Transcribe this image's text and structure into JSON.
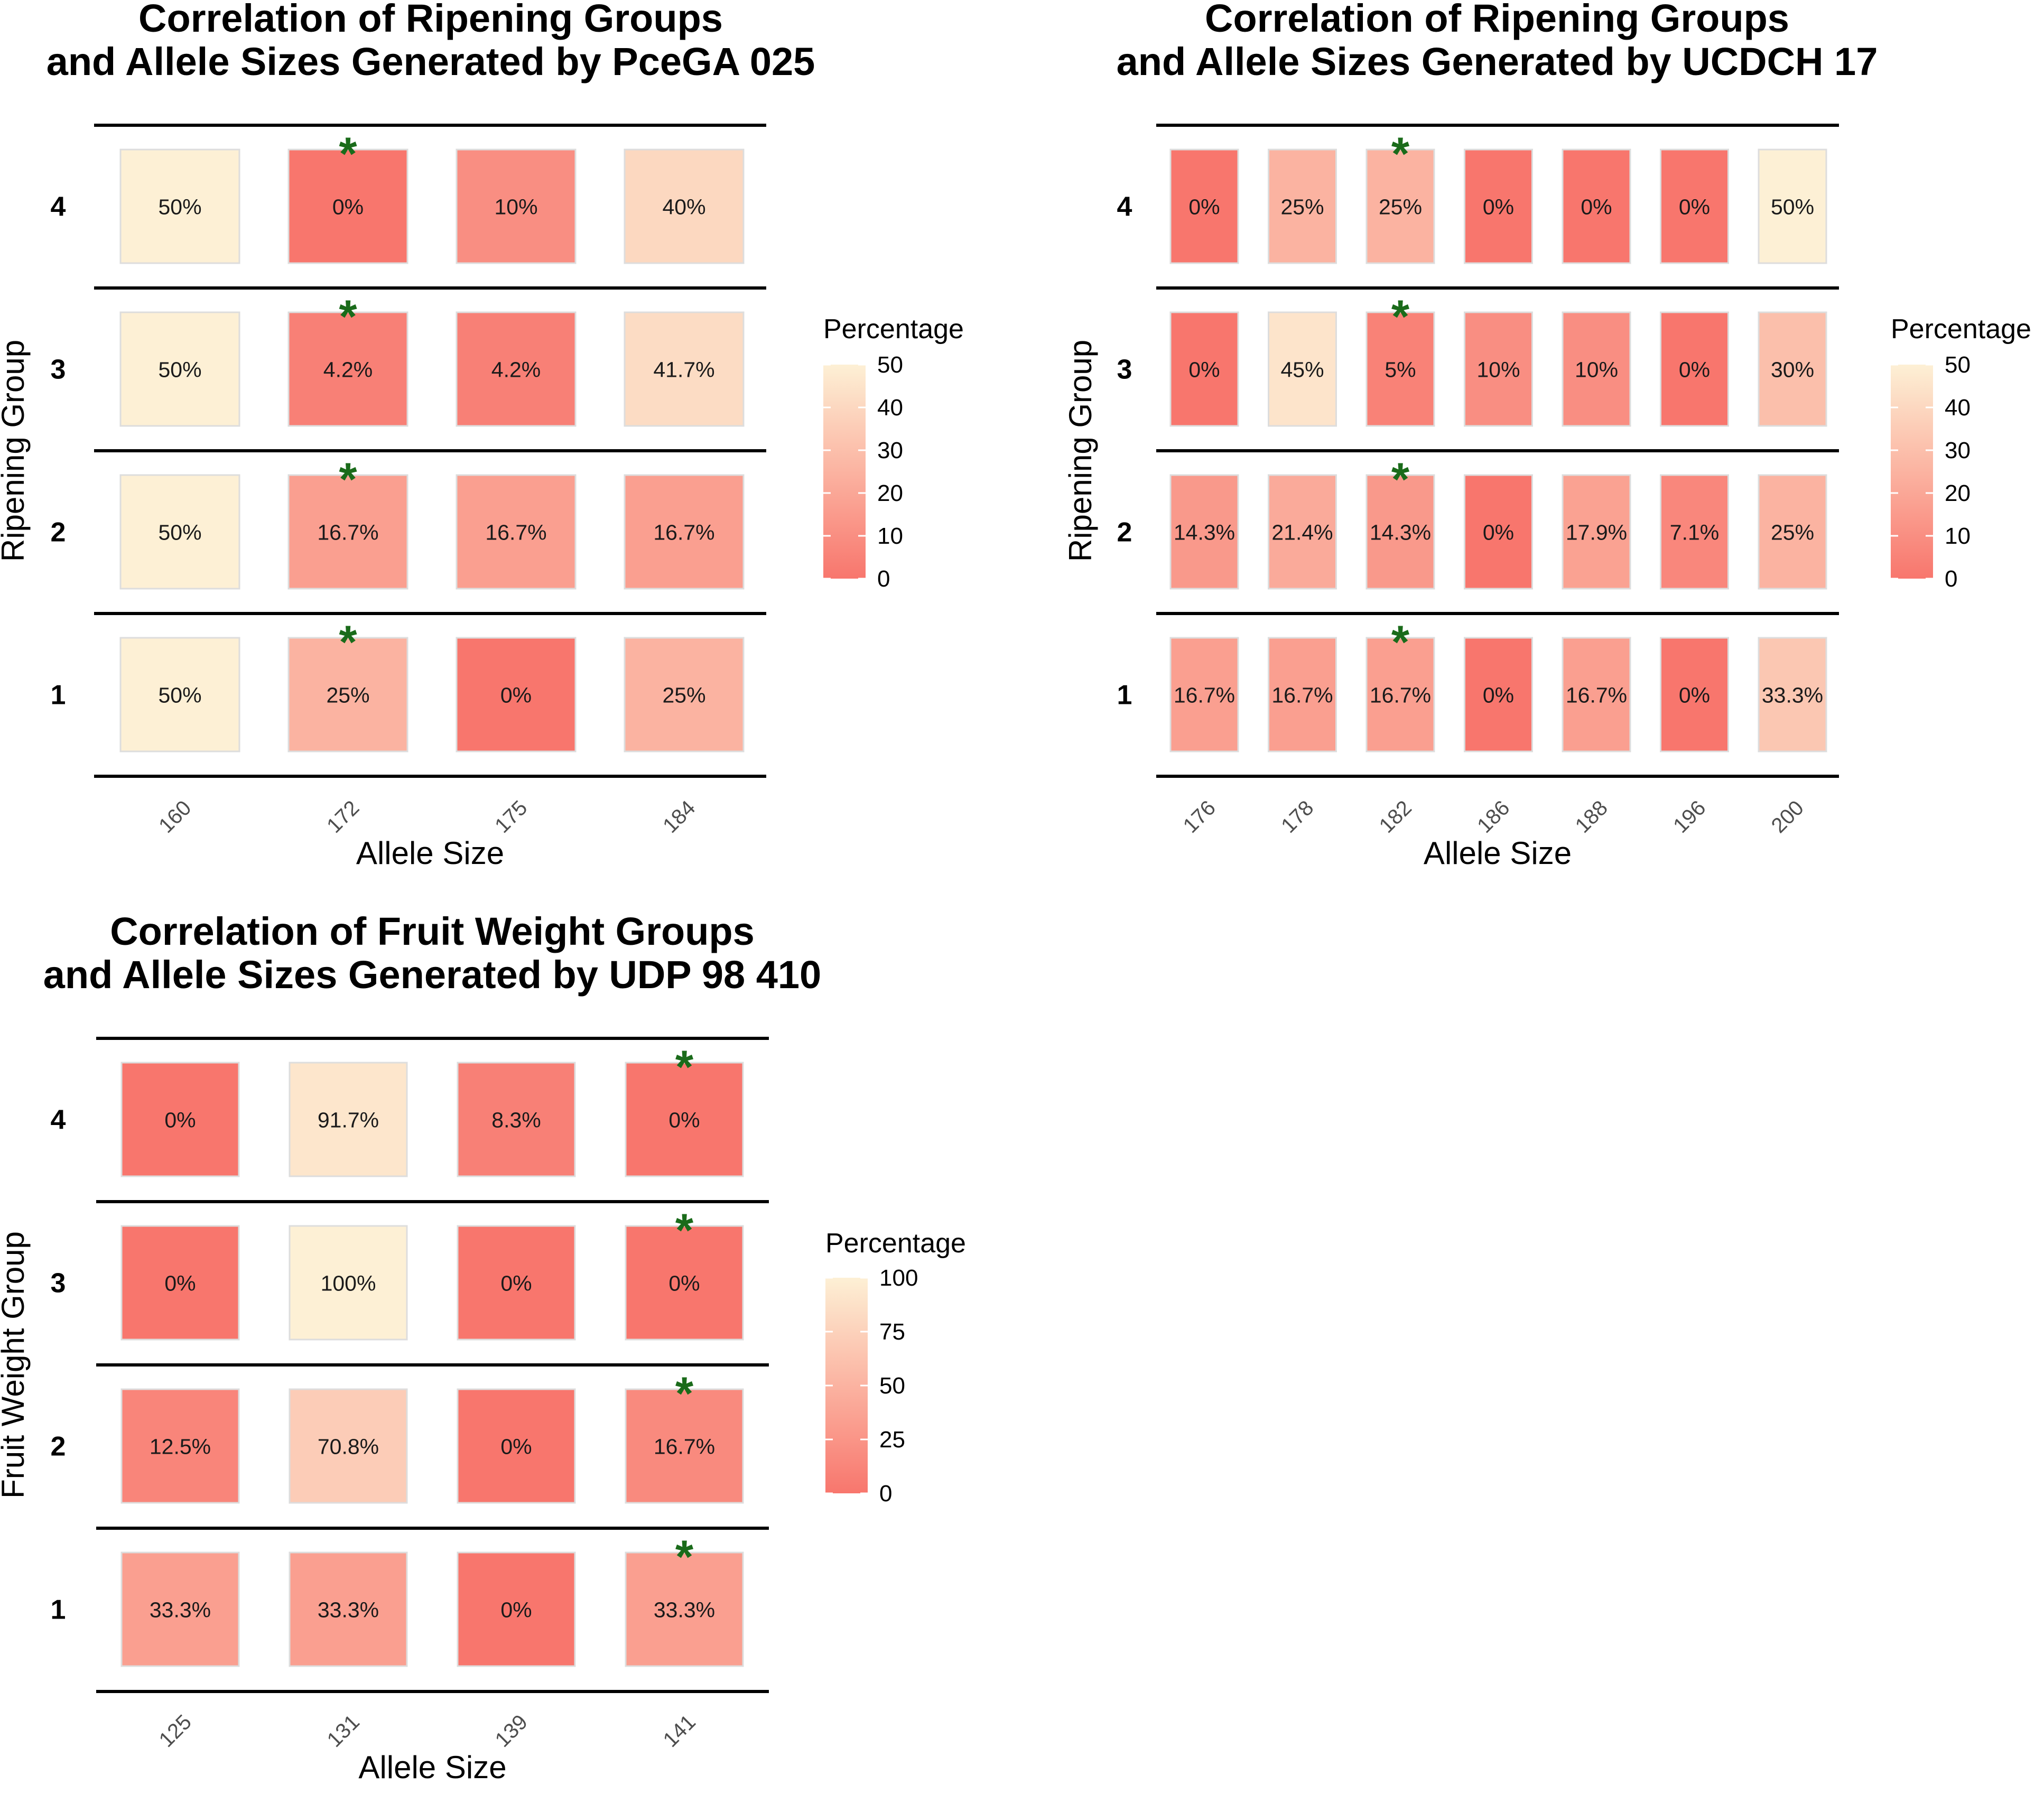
{
  "colors": {
    "low": "#f8766d",
    "high": "#fdf0d5",
    "marker": "#1a6b1a",
    "rule": "#000000",
    "cell_border": "#dddddd"
  },
  "chart_data": [
    {
      "type": "heatmap",
      "title": [
        "Correlation of Ripening Groups",
        "and Allele Sizes Generated by PceGA 025"
      ],
      "xlabel": "Allele Size",
      "ylabel": "Ripening Group",
      "categories": [
        "160",
        "172",
        "175",
        "184"
      ],
      "groups": [
        "4",
        "3",
        "2",
        "1"
      ],
      "values": [
        [
          50,
          0,
          10,
          40
        ],
        [
          50,
          4.2,
          4.2,
          41.7
        ],
        [
          50,
          16.7,
          16.7,
          16.7
        ],
        [
          50,
          25,
          0,
          25
        ]
      ],
      "labels": [
        [
          "50%",
          "0%",
          "10%",
          "40%"
        ],
        [
          "50%",
          "4.2%",
          "4.2%",
          "41.7%"
        ],
        [
          "50%",
          "16.7%",
          "16.7%",
          "16.7%"
        ],
        [
          "50%",
          "25%",
          "0%",
          "25%"
        ]
      ],
      "marked_category": "172",
      "marker": "*",
      "legend": {
        "title": "Percentage",
        "range": [
          0,
          50
        ],
        "ticks": [
          "0",
          "10",
          "20",
          "30",
          "40",
          "50"
        ]
      }
    },
    {
      "type": "heatmap",
      "title": [
        "Correlation of Ripening Groups",
        "and Allele Sizes Generated by UCDCH 17"
      ],
      "xlabel": "Allele Size",
      "ylabel": "Ripening Group",
      "categories": [
        "176",
        "178",
        "182",
        "186",
        "188",
        "196",
        "200"
      ],
      "groups": [
        "4",
        "3",
        "2",
        "1"
      ],
      "values": [
        [
          0,
          25,
          25,
          0,
          0,
          0,
          50
        ],
        [
          0,
          45,
          5,
          10,
          10,
          0,
          30
        ],
        [
          14.3,
          21.4,
          14.3,
          0,
          17.9,
          7.1,
          25
        ],
        [
          16.7,
          16.7,
          16.7,
          0,
          16.7,
          0,
          33.3
        ]
      ],
      "labels": [
        [
          "0%",
          "25%",
          "25%",
          "0%",
          "0%",
          "0%",
          "50%"
        ],
        [
          "0%",
          "45%",
          "5%",
          "10%",
          "10%",
          "0%",
          "30%"
        ],
        [
          "14.3%",
          "21.4%",
          "14.3%",
          "0%",
          "17.9%",
          "7.1%",
          "25%"
        ],
        [
          "16.7%",
          "16.7%",
          "16.7%",
          "0%",
          "16.7%",
          "0%",
          "33.3%"
        ]
      ],
      "marked_category": "182",
      "marker": "*",
      "legend": {
        "title": "Percentage",
        "range": [
          0,
          50
        ],
        "ticks": [
          "0",
          "10",
          "20",
          "30",
          "40",
          "50"
        ]
      }
    },
    {
      "type": "heatmap",
      "title": [
        "Correlation of Fruit Weight Groups",
        "and Allele Sizes Generated by UDP 98 410"
      ],
      "xlabel": "Allele Size",
      "ylabel": "Fruit Weight Group",
      "categories": [
        "125",
        "131",
        "139",
        "141"
      ],
      "groups": [
        "4",
        "3",
        "2",
        "1"
      ],
      "values": [
        [
          0,
          91.7,
          8.3,
          0
        ],
        [
          0,
          100,
          0,
          0
        ],
        [
          12.5,
          70.8,
          0,
          16.7
        ],
        [
          33.3,
          33.3,
          0,
          33.3
        ]
      ],
      "labels": [
        [
          "0%",
          "91.7%",
          "8.3%",
          "0%"
        ],
        [
          "0%",
          "100%",
          "0%",
          "0%"
        ],
        [
          "12.5%",
          "70.8%",
          "0%",
          "16.7%"
        ],
        [
          "33.3%",
          "33.3%",
          "0%",
          "33.3%"
        ]
      ],
      "marked_category": "141",
      "marker": "*",
      "legend": {
        "title": "Percentage",
        "range": [
          0,
          100
        ],
        "ticks": [
          "0",
          "25",
          "50",
          "75",
          "100"
        ]
      }
    }
  ]
}
